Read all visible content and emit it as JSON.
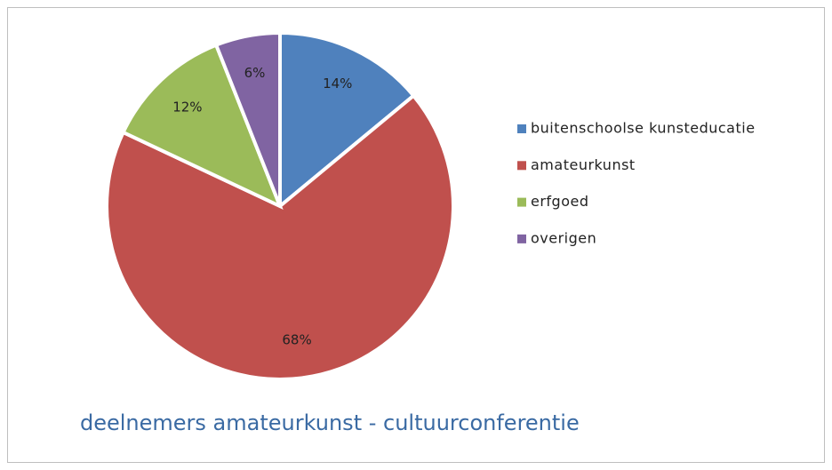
{
  "chart_data": {
    "type": "pie",
    "title": "deelnemers amateurkunst - cultuurconferentie",
    "categories": [
      "buitenschoolse kunsteducatie",
      "amateurkunst",
      "erfgoed",
      "overigen"
    ],
    "values": [
      14,
      68,
      12,
      6
    ],
    "value_labels": [
      "14%",
      "68%",
      "12%",
      "6%"
    ],
    "colors": [
      "#4f81bd",
      "#c0504d",
      "#9bbb59",
      "#8064a2"
    ],
    "legend": "right"
  }
}
